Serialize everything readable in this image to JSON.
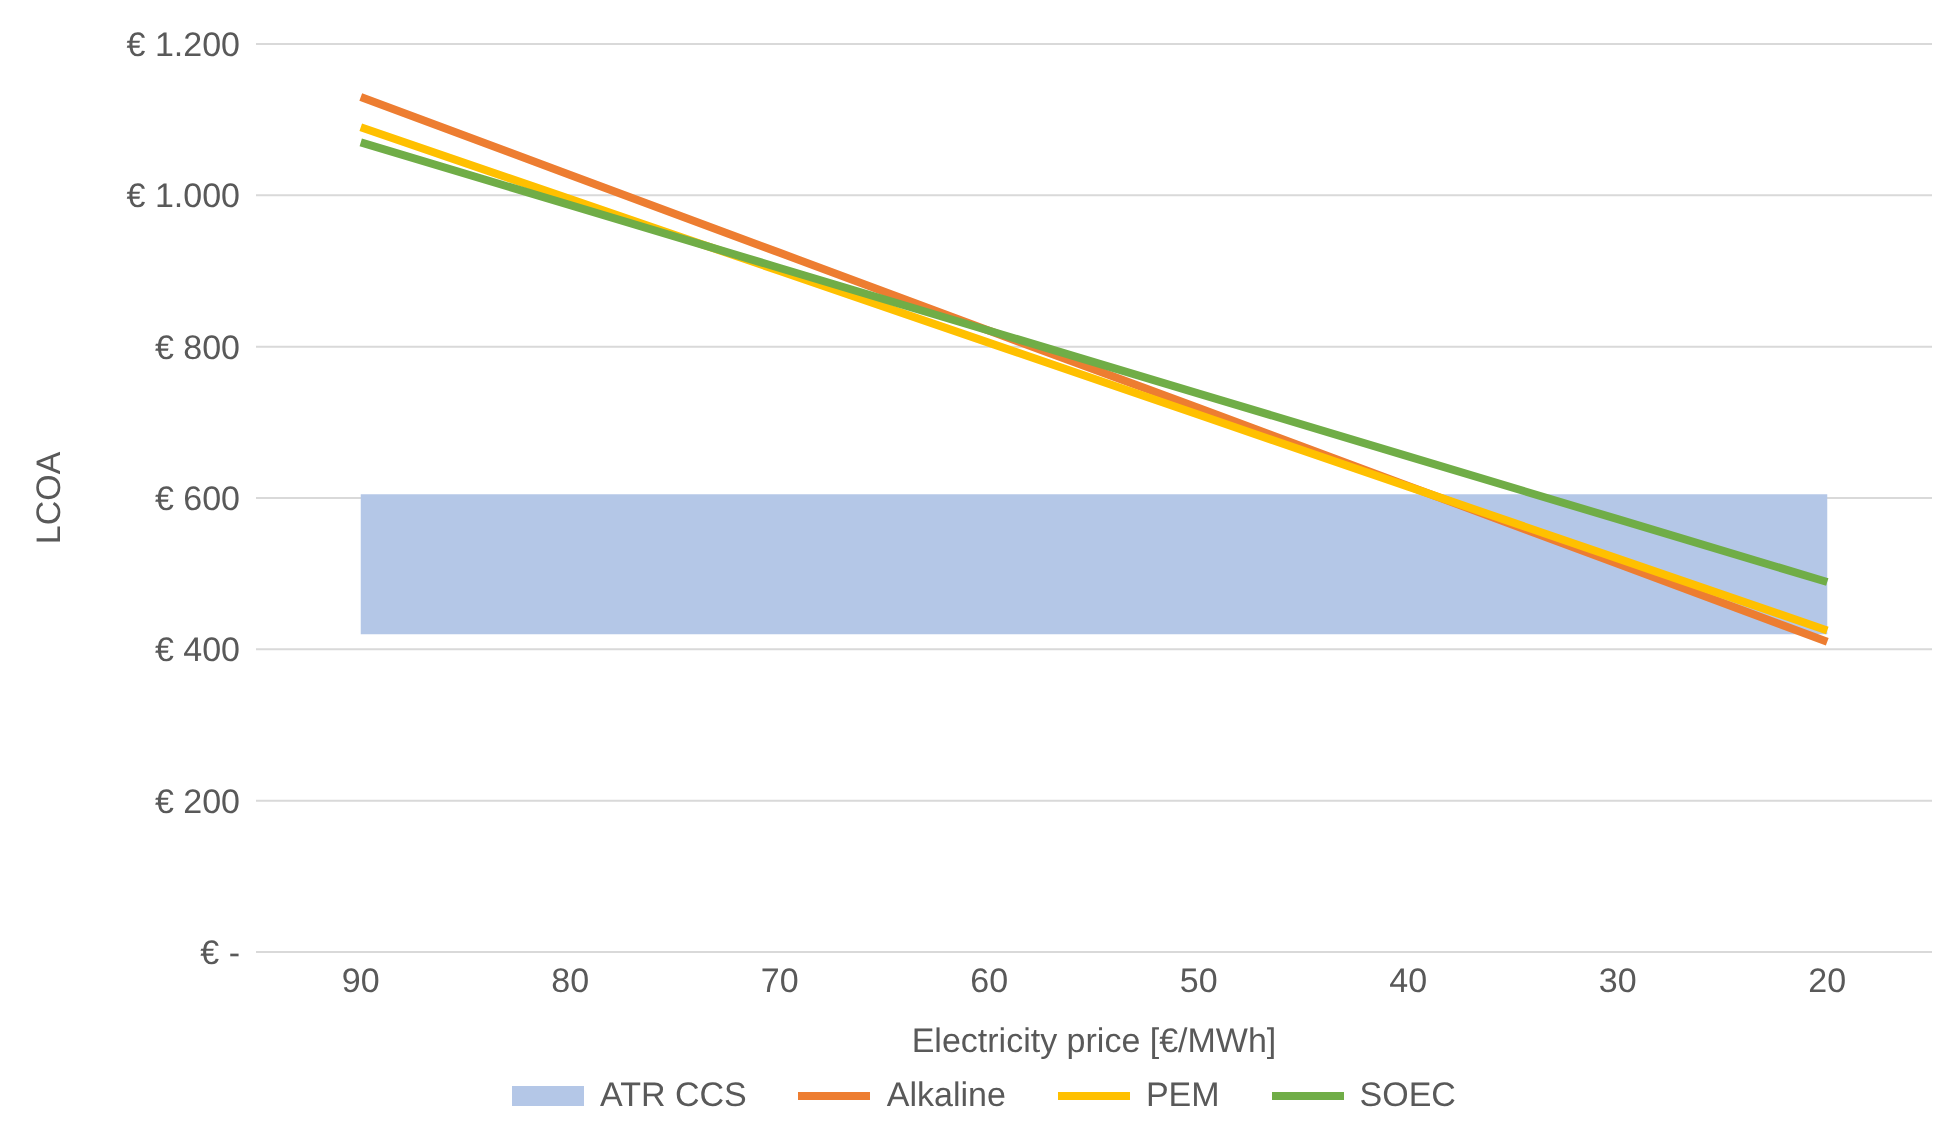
{
  "chart_data": {
    "type": "line",
    "xlabel": "Electricity price [€/MWh]",
    "ylabel": "LCOA",
    "categories": [
      "90",
      "80",
      "70",
      "60",
      "50",
      "40",
      "30",
      "20"
    ],
    "series": [
      {
        "name": "Alkaline",
        "color": "#ed7d31",
        "values": [
          1130,
          1027,
          924,
          821,
          719,
          616,
          513,
          410
        ]
      },
      {
        "name": "PEM",
        "color": "#ffc000",
        "values": [
          1090,
          995,
          900,
          805,
          710,
          615,
          520,
          425
        ]
      },
      {
        "name": "SOEC",
        "color": "#70ad47",
        "values": [
          1070,
          987,
          904,
          821,
          738,
          655,
          572,
          489
        ]
      }
    ],
    "bands": [
      {
        "axis": "y",
        "from": 420,
        "to": 605,
        "label": "ATR CCS",
        "color": "#b4c7e7"
      }
    ],
    "ylim": [
      0,
      1200
    ],
    "yticks": [
      {
        "value": 0,
        "label": "€ -"
      },
      {
        "value": 200,
        "label": "€ 200"
      },
      {
        "value": 400,
        "label": "€ 400"
      },
      {
        "value": 600,
        "label": "€ 600"
      },
      {
        "value": 800,
        "label": "€ 800"
      },
      {
        "value": 1000,
        "label": "€ 1.000"
      },
      {
        "value": 1200,
        "label": "€ 1.200"
      }
    ],
    "grid": "y",
    "legend": "bottom",
    "marker": "none",
    "line_style": "solid"
  }
}
